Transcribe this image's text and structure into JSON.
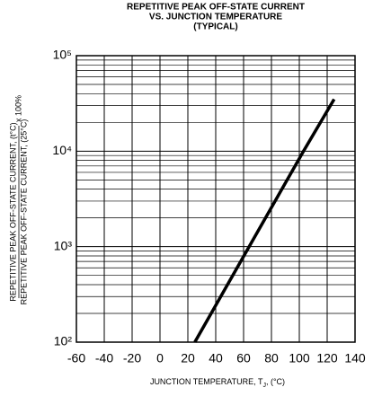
{
  "chart_data": {
    "type": "line",
    "title": [
      "REPETITIVE PEAK OFF-STATE CURRENT",
      "VS. JUNCTION TEMPERATURE",
      "(TYPICAL)"
    ],
    "ylabel": {
      "numerator": "REPETITIVE PEAK OFF-STATE CURRENT, (t°C)",
      "denominator": "REPETITIVE PEAK OFF-STATE CURRENT, (25°C)",
      "suffix": "x 100%"
    },
    "xlabel": {
      "text": "JUNCTION TEMPERATURE, T",
      "subscript": "J",
      "suffix": ", (°C)"
    },
    "x": [
      25,
      64,
      103,
      125
    ],
    "series": [
      {
        "color": "#000000",
        "values": [
          100,
          1000,
          10000,
          35000
        ]
      }
    ],
    "xlim": [
      -60,
      140
    ],
    "xticks": [
      -60,
      -40,
      -20,
      0,
      20,
      40,
      60,
      80,
      100,
      120,
      140
    ],
    "ylim": [
      100,
      100000
    ],
    "ylog": true,
    "yticks": [
      {
        "value": 100,
        "label": "10²"
      },
      {
        "value": 1000,
        "label": "10³"
      },
      {
        "value": 10000,
        "label": "10⁴"
      },
      {
        "value": 100000,
        "label": "10⁵"
      }
    ],
    "grid": true
  }
}
